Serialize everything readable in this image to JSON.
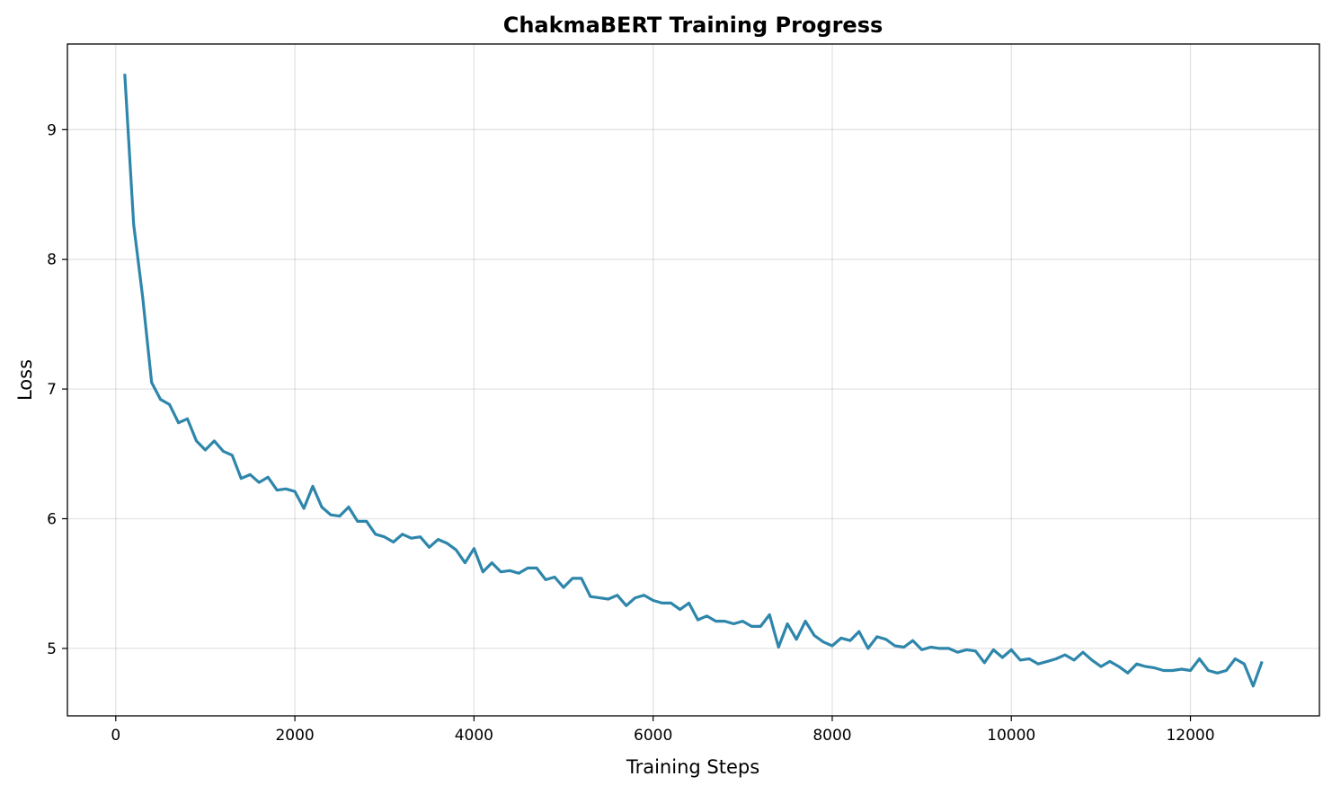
{
  "chart_data": {
    "type": "line",
    "title": "ChakmaBERT Training Progress",
    "xlabel": "Training Steps",
    "ylabel": "Loss",
    "xlim": [
      -540,
      13440
    ],
    "ylim": [
      4.48,
      9.66
    ],
    "xticks": [
      0,
      2000,
      4000,
      6000,
      8000,
      10000,
      12000
    ],
    "yticks": [
      5,
      6,
      7,
      8,
      9
    ],
    "grid": true,
    "line_color": "#2e86ab",
    "series": [
      {
        "x": [
          100,
          200,
          300,
          400,
          500,
          600,
          700,
          800,
          900,
          1000,
          1100,
          1200,
          1300,
          1400,
          1500,
          1600,
          1700,
          1800,
          1900,
          2000,
          2100,
          2200,
          2300,
          2400,
          2500,
          2600,
          2700,
          2800,
          2900,
          3000,
          3100,
          3200,
          3300,
          3400,
          3500,
          3600,
          3700,
          3800,
          3900,
          4000,
          4100,
          4200,
          4300,
          4400,
          4500,
          4600,
          4700,
          4800,
          4900,
          5000,
          5100,
          5200,
          5300,
          5400,
          5500,
          5600,
          5700,
          5800,
          5900,
          6000,
          6100,
          6200,
          6300,
          6400,
          6500,
          6600,
          6700,
          6800,
          6900,
          7000,
          7100,
          7200,
          7300,
          7400,
          7500,
          7600,
          7700,
          7800,
          7900,
          8000,
          8100,
          8200,
          8300,
          8400,
          8500,
          8600,
          8700,
          8800,
          8900,
          9000,
          9100,
          9200,
          9300,
          9400,
          9500,
          9600,
          9700,
          9800,
          9900,
          10000,
          10100,
          10200,
          10300,
          10400,
          10500,
          10600,
          10700,
          10800,
          10900,
          11000,
          11100,
          11200,
          11300,
          11400,
          11500,
          11600,
          11700,
          11800,
          11900,
          12000,
          12100,
          12200,
          12300,
          12400,
          12500,
          12600,
          12700,
          12800
        ],
        "y": [
          9.43,
          8.27,
          7.71,
          7.05,
          6.92,
          6.88,
          6.74,
          6.77,
          6.6,
          6.53,
          6.6,
          6.52,
          6.49,
          6.31,
          6.34,
          6.28,
          6.32,
          6.22,
          6.23,
          6.21,
          6.08,
          6.25,
          6.09,
          6.03,
          6.02,
          6.09,
          5.98,
          5.98,
          5.88,
          5.86,
          5.82,
          5.88,
          5.85,
          5.86,
          5.78,
          5.84,
          5.81,
          5.76,
          5.66,
          5.77,
          5.59,
          5.66,
          5.59,
          5.6,
          5.58,
          5.62,
          5.62,
          5.53,
          5.55,
          5.47,
          5.54,
          5.54,
          5.4,
          5.39,
          5.38,
          5.41,
          5.33,
          5.39,
          5.41,
          5.37,
          5.35,
          5.35,
          5.3,
          5.35,
          5.22,
          5.25,
          5.21,
          5.21,
          5.19,
          5.21,
          5.17,
          5.17,
          5.26,
          5.01,
          5.19,
          5.07,
          5.21,
          5.1,
          5.05,
          5.02,
          5.08,
          5.06,
          5.13,
          5.0,
          5.09,
          5.07,
          5.02,
          5.01,
          5.06,
          4.99,
          5.01,
          5.0,
          5.0,
          4.97,
          4.99,
          4.98,
          4.89,
          4.99,
          4.93,
          4.99,
          4.91,
          4.92,
          4.88,
          4.9,
          4.92,
          4.95,
          4.91,
          4.97,
          4.91,
          4.86,
          4.9,
          4.86,
          4.81,
          4.88,
          4.86,
          4.85,
          4.83,
          4.83,
          4.84,
          4.83,
          4.92,
          4.83,
          4.81,
          4.83,
          4.92,
          4.88,
          4.71,
          4.9
        ]
      }
    ]
  }
}
